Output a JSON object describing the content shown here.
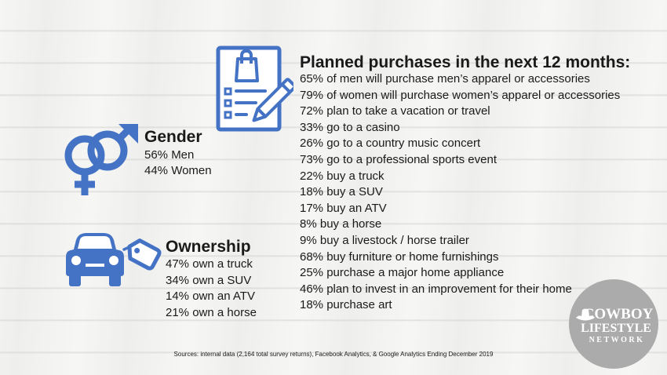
{
  "gender": {
    "title": "Gender",
    "lines": [
      "56% Men",
      "44% Women"
    ],
    "icon": "gender-symbols-icon"
  },
  "ownership": {
    "title": "Ownership",
    "lines": [
      "47% own a truck",
      "34% own a SUV",
      "14% own an ATV",
      "21% own a horse"
    ],
    "icon": "car-with-price-tag-icon"
  },
  "planned": {
    "icon": "checklist-with-shopping-bag-icon",
    "title": "Planned purchases in the next 12 months:",
    "items": [
      "65% of men will purchase men’s apparel or accessories",
      "79% of women will purchase women’s apparel or accessories",
      "72% plan to take a vacation or travel",
      "33% go to a casino",
      "26% go to a country music concert",
      "73% go to a professional sports event",
      "22% buy a truck",
      "18% buy a SUV",
      "17% buy an ATV",
      "8% buy a horse",
      "9% buy a livestock / horse trailer",
      "68% buy furniture or home furnishings",
      "25% purchase a major home appliance",
      "46% plan to invest in an improvement for their home",
      "18% purchase art"
    ]
  },
  "footer": {
    "sources": "Sources: internal data (2,164 total survey returns), Facebook Analytics, & Google Analytics Ending December 2019"
  },
  "logo": {
    "line1": "COWBOY",
    "line2": "LIFESTYLE",
    "line3": "NETWORK"
  },
  "colors": {
    "icon_blue": "#4472c4",
    "logo_gray": "#ababab",
    "text": "#1a1a1a"
  }
}
